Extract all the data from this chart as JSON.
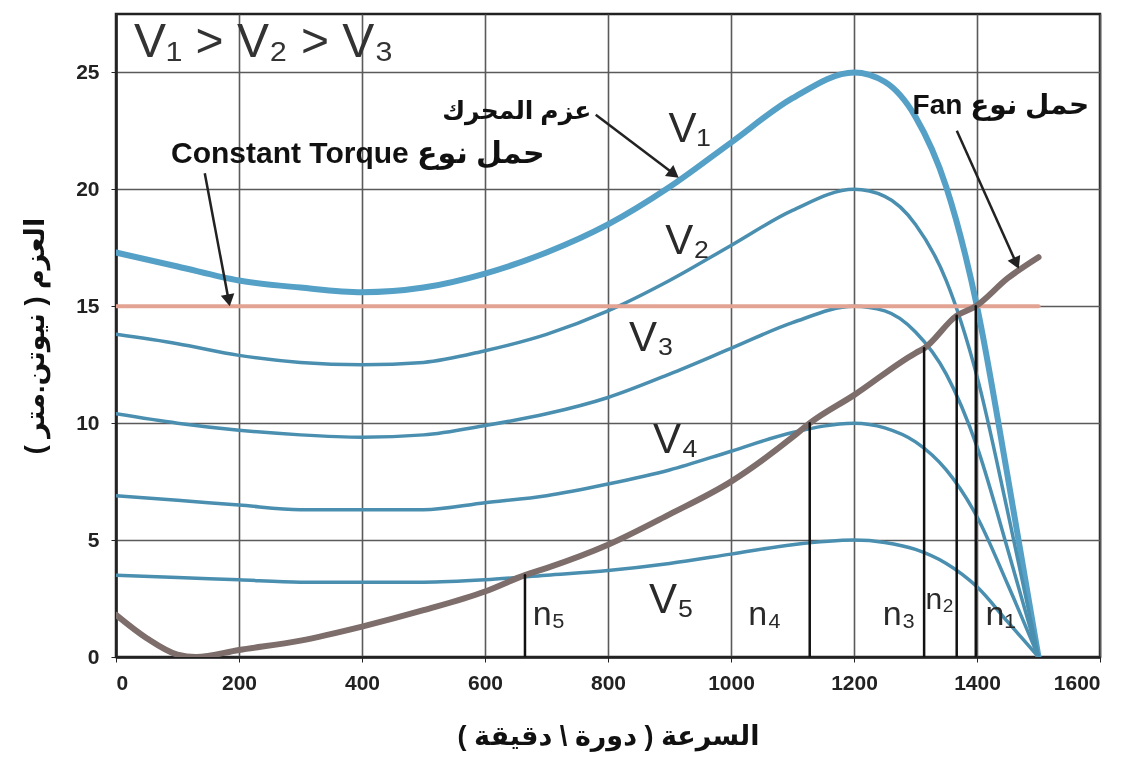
{
  "chart_data": {
    "type": "line",
    "xlabel": "السرعة ( دورة \\ دقيقة )",
    "ylabel": "العزم ( نيوتن.متر )",
    "xlim": [
      0,
      1600
    ],
    "xticks": [
      0,
      200,
      400,
      600,
      800,
      1000,
      1200,
      1400,
      1600
    ],
    "ylim": [
      0,
      27.5
    ],
    "yticks": [
      0,
      5,
      10,
      15,
      20,
      25
    ],
    "grid": true,
    "annotations": [
      "V₁ > V₂ > V₃",
      {
        "text": "Constant Torque حمل نوع",
        "x": 185,
        "y": 15
      },
      {
        "text": "عزم المحرك",
        "x": 915,
        "y": 20.5
      },
      {
        "text": "Fan حمل نوع",
        "x": 1468,
        "y": 16.6
      }
    ],
    "x": [
      0,
      100,
      200,
      300,
      400,
      500,
      600,
      700,
      800,
      900,
      1000,
      1100,
      1200,
      1250,
      1300,
      1350,
      1400,
      1450,
      1500
    ],
    "series": [
      {
        "name": "V₁",
        "color": "#55a0c6",
        "values": [
          17.3,
          16.7,
          16.1,
          15.8,
          15.6,
          15.8,
          16.4,
          17.3,
          18.5,
          20.1,
          22.0,
          23.9,
          25.0,
          24.6,
          23.1,
          20.1,
          15.0,
          7.7,
          0
        ]
      },
      {
        "name": "V₂",
        "color": "#4a8fb0",
        "values": [
          13.8,
          13.4,
          12.9,
          12.6,
          12.5,
          12.6,
          13.1,
          13.8,
          14.8,
          16.1,
          17.6,
          19.1,
          20.0,
          19.7,
          18.5,
          16.1,
          12.0,
          6.2,
          0
        ]
      },
      {
        "name": "V₃",
        "color": "#4a8fb0",
        "values": [
          10.4,
          10.0,
          9.7,
          9.5,
          9.4,
          9.5,
          9.9,
          10.4,
          11.1,
          12.1,
          13.2,
          14.3,
          15.0,
          14.8,
          13.9,
          12.1,
          9.0,
          4.6,
          0
        ]
      },
      {
        "name": "V₄",
        "color": "#4a8fb0",
        "values": [
          6.9,
          6.7,
          6.5,
          6.3,
          6.3,
          6.3,
          6.6,
          6.9,
          7.4,
          8.0,
          8.8,
          9.6,
          10.0,
          9.8,
          9.2,
          8.0,
          6.0,
          3.1,
          0
        ]
      },
      {
        "name": "V₅",
        "color": "#4a8fb0",
        "values": [
          3.5,
          3.4,
          3.3,
          3.2,
          3.2,
          3.2,
          3.3,
          3.5,
          3.7,
          4.0,
          4.4,
          4.8,
          5.0,
          4.9,
          4.6,
          4.0,
          3.0,
          1.5,
          0
        ]
      },
      {
        "color": "#e3a393",
        "x": [
          0,
          1500
        ],
        "values": [
          15,
          15
        ]
      },
      {
        "color": "#7d6d6b",
        "x": [
          0,
          50,
          100,
          130,
          200,
          300,
          400,
          500,
          600,
          665,
          700,
          800,
          900,
          1000,
          1100,
          1128,
          1200,
          1300,
          1314,
          1367,
          1398,
          1450,
          1500
        ],
        "values": [
          1.8,
          0.8,
          0.1,
          0,
          0.3,
          0.7,
          1.3,
          2.0,
          2.8,
          3.5,
          3.8,
          4.8,
          6.1,
          7.5,
          9.4,
          10.0,
          11.2,
          13.0,
          13.2,
          14.6,
          15.0,
          16.2,
          17.1
        ]
      },
      {
        "name": "n₅",
        "color": "#111111",
        "x": [
          665,
          665
        ],
        "values": [
          0,
          3.5
        ]
      },
      {
        "name": "n₄",
        "color": "#111111",
        "x": [
          1128,
          1128
        ],
        "values": [
          0,
          10
        ]
      },
      {
        "name": "n₃",
        "color": "#111111",
        "x": [
          1314,
          1314
        ],
        "values": [
          0,
          13.2
        ]
      },
      {
        "name": "n₂",
        "color": "#111111",
        "x": [
          1367,
          1367
        ],
        "values": [
          0,
          14.6
        ]
      },
      {
        "name": "n₁",
        "color": "#111111",
        "x": [
          1398,
          1398
        ],
        "values": [
          0,
          15
        ]
      }
    ]
  }
}
